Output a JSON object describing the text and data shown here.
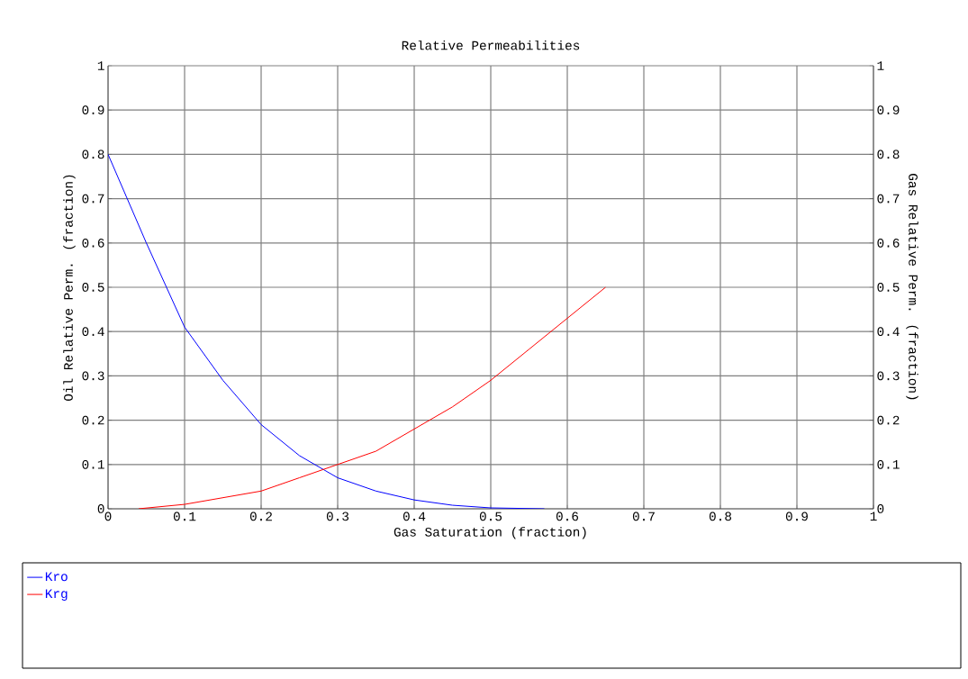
{
  "chart_data": {
    "type": "line",
    "title": "Relative Permeabilities",
    "xlabel": "Gas Saturation (fraction)",
    "ylabel": "Oil Relative Perm. (fraction)",
    "y2label": "Gas Relative Perm. (fraction)",
    "xlim": [
      0,
      1
    ],
    "ylim": [
      0,
      1
    ],
    "y2lim": [
      0,
      1
    ],
    "xticks": [
      0,
      0.1,
      0.2,
      0.3,
      0.4,
      0.5,
      0.6,
      0.7,
      0.8,
      0.9,
      1
    ],
    "yticks": [
      0,
      0.1,
      0.2,
      0.3,
      0.4,
      0.5,
      0.6,
      0.7,
      0.8,
      0.9,
      1
    ],
    "y2ticks": [
      0,
      0.1,
      0.2,
      0.3,
      0.4,
      0.5,
      0.6,
      0.7,
      0.8,
      0.9,
      1
    ],
    "grid": true,
    "legend": "bottom",
    "marker": "none",
    "line_style": "solid",
    "series": [
      {
        "name": "Kro",
        "color": "#0000ff",
        "x": [
          0,
          0.05,
          0.1,
          0.15,
          0.2,
          0.25,
          0.3,
          0.35,
          0.4,
          0.45,
          0.5,
          0.57
        ],
        "values": [
          0.8,
          0.6,
          0.41,
          0.29,
          0.19,
          0.12,
          0.07,
          0.04,
          0.02,
          0.008,
          0.002,
          0
        ]
      },
      {
        "name": "Krg",
        "color": "#ff0000",
        "axis": "y2",
        "x": [
          0.04,
          0.1,
          0.2,
          0.25,
          0.3,
          0.35,
          0.4,
          0.45,
          0.5,
          0.55,
          0.6,
          0.65
        ],
        "values": [
          0,
          0.01,
          0.04,
          0.07,
          0.1,
          0.13,
          0.18,
          0.23,
          0.29,
          0.36,
          0.43,
          0.5
        ]
      }
    ]
  }
}
